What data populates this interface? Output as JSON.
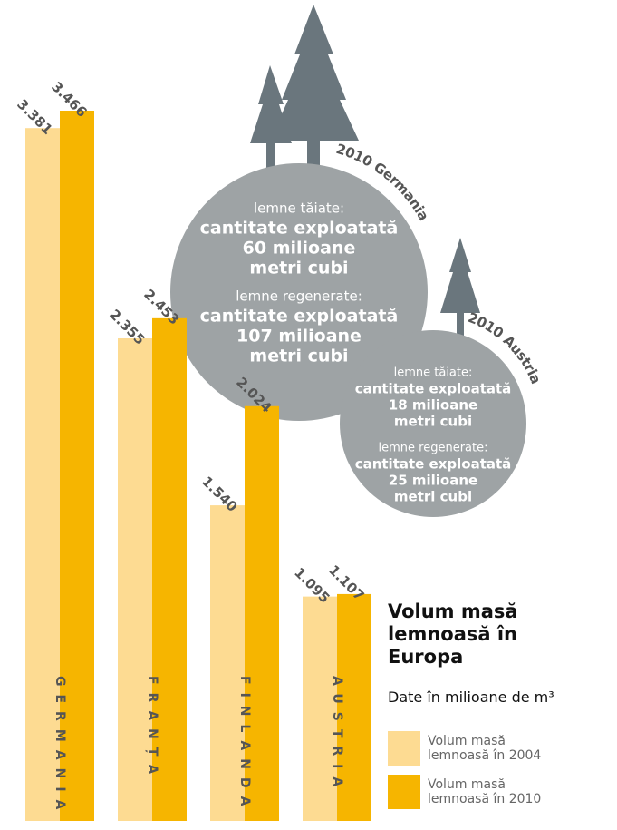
{
  "chart_data": {
    "type": "bar",
    "title": "Volum masă lemnoasă în Europa",
    "subtitle": "Date în milioane de m³",
    "categories": [
      "GERMANIA",
      "FRANȚA",
      "FINLANDA",
      "AUSTRIA"
    ],
    "series": [
      {
        "name": "Volum masă lemnoasă în 2004",
        "color": "#fddb92",
        "values": [
          3381,
          2355,
          1540,
          1095
        ],
        "value_labels": [
          "3.381",
          "2.355",
          "1.540",
          "1.095"
        ]
      },
      {
        "name": "Volum masă lemnoasă în 2010",
        "color": "#f6b500",
        "values": [
          3466,
          2453,
          2024,
          1107
        ],
        "value_labels": [
          "3.466",
          "2.453",
          "2.024",
          "1.107"
        ]
      }
    ],
    "annotations": [
      {
        "title": "2010 Germania",
        "groups": [
          {
            "label": "lemne tăiate:",
            "text": [
              "cantitate exploatată",
              "60 milioane",
              "metri cubi"
            ]
          },
          {
            "label": "lemne regenerate:",
            "text": [
              "cantitate exploatată",
              "107 milioane",
              "metri cubi"
            ]
          }
        ]
      },
      {
        "title": "2010 Austria",
        "groups": [
          {
            "label": "lemne tăiate:",
            "text": [
              "cantitate exploatată",
              "18 milioane",
              "metri cubi"
            ]
          },
          {
            "label": "lemne regenerate:",
            "text": [
              "cantitate exploatată",
              "25 milioane",
              "metri cubi"
            ]
          }
        ]
      }
    ]
  }
}
